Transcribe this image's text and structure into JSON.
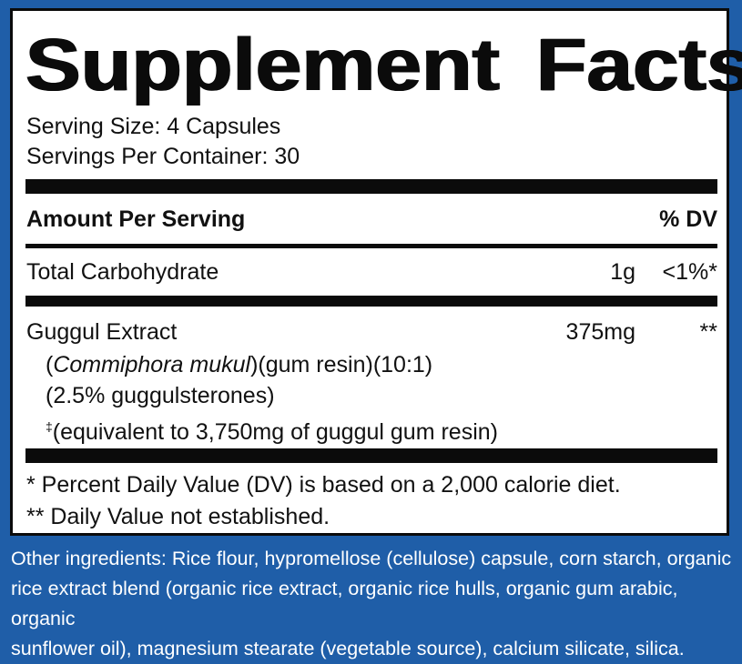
{
  "label": {
    "title_word1": "Supplement",
    "title_word2": "Facts",
    "serving_size": "Serving Size: 4 Capsules",
    "servings_per_container": "Servings Per Container: 30",
    "amount_header": "Amount Per Serving",
    "dv_header": "% DV",
    "rows": [
      {
        "name": "Total  Carbohydrate",
        "amount": "1g",
        "dv": "<1%*"
      },
      {
        "name": "Guggul Extract",
        "amount": "375mg",
        "dv": "**"
      }
    ],
    "guggul_details": {
      "species_open": "(",
      "species": "Commiphora mukul",
      "species_rest": ")(gum resin)(10:1)",
      "standardization": "(2.5% guggulsterones)",
      "dagger": "‡",
      "equivalent": "(equivalent to 3,750mg of guggul gum resin)"
    },
    "footnote_1": "* Percent Daily Value (DV) is based on a 2,000 calorie diet.",
    "footnote_2": "** Daily Value not established."
  },
  "other_ingredients": {
    "line1": "Other ingredients: Rice flour, hypromellose (cellulose) capsule, corn starch, organic",
    "line2": "rice extract blend (organic rice extract, organic rice hulls, organic gum arabic, organic",
    "line3": "sunflower oil), magnesium stearate (vegetable source), calcium silicate, silica."
  },
  "colors": {
    "background_blue": "#1f5ea8",
    "panel": "#ffffff",
    "ink": "#0b0b0b"
  }
}
